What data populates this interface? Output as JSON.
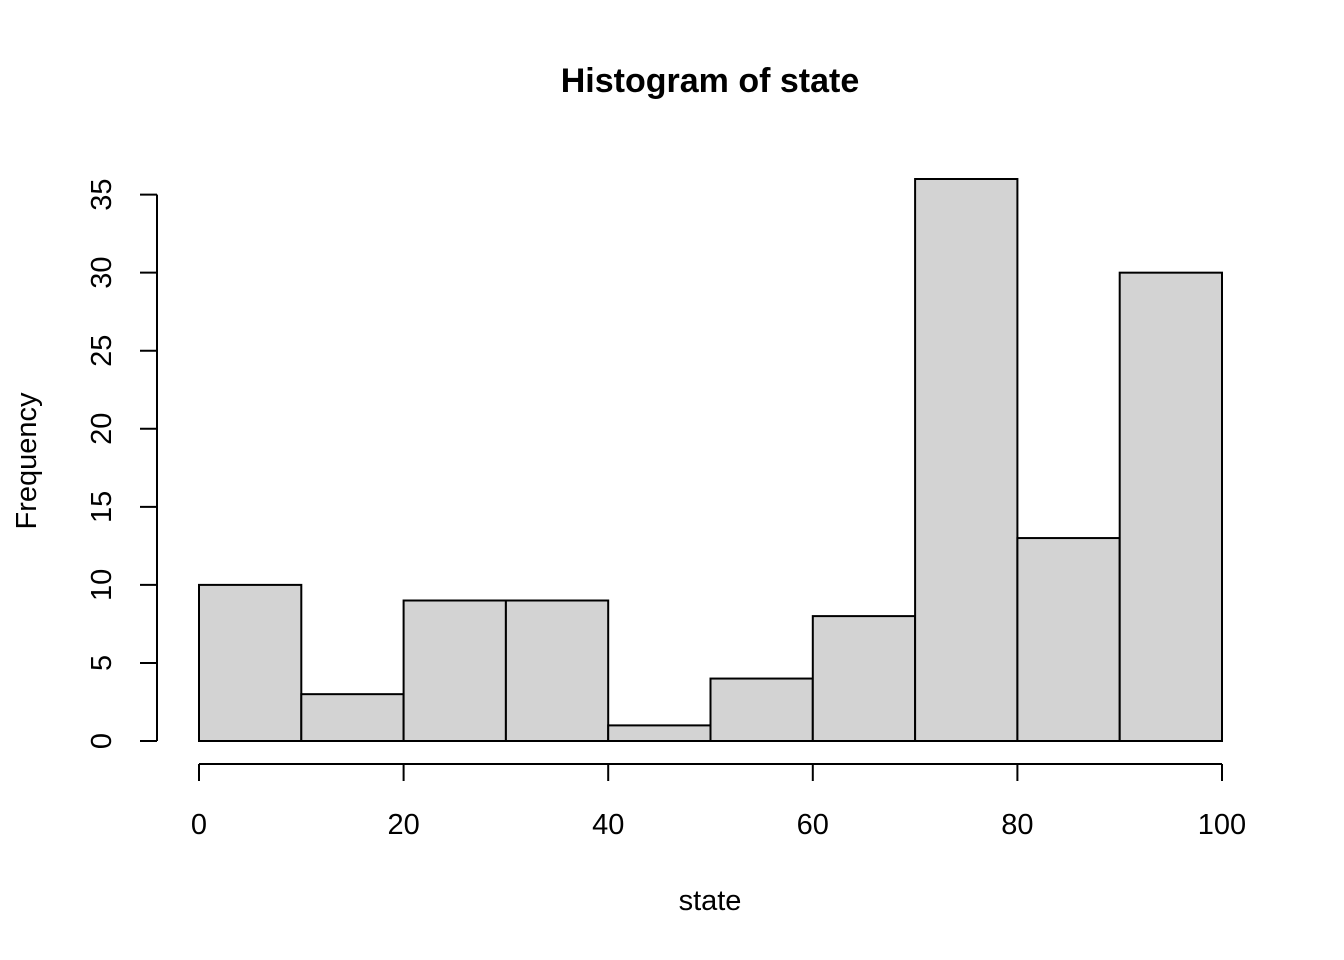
{
  "chart_data": {
    "type": "bar",
    "title": "Histogram of state",
    "xlabel": "state",
    "ylabel": "Frequency",
    "bin_edges": [
      0,
      10,
      20,
      30,
      40,
      50,
      60,
      70,
      80,
      90,
      100
    ],
    "values": [
      10,
      3,
      9,
      9,
      1,
      4,
      8,
      36,
      13,
      30
    ],
    "xlim": [
      0,
      100
    ],
    "ylim": [
      0,
      36
    ],
    "x_ticks": [
      0,
      20,
      40,
      60,
      80,
      100
    ],
    "y_ticks": [
      0,
      5,
      10,
      15,
      20,
      25,
      30,
      35
    ],
    "bar_fill": "#d3d3d3",
    "bar_stroke": "#000000",
    "grid": false
  }
}
